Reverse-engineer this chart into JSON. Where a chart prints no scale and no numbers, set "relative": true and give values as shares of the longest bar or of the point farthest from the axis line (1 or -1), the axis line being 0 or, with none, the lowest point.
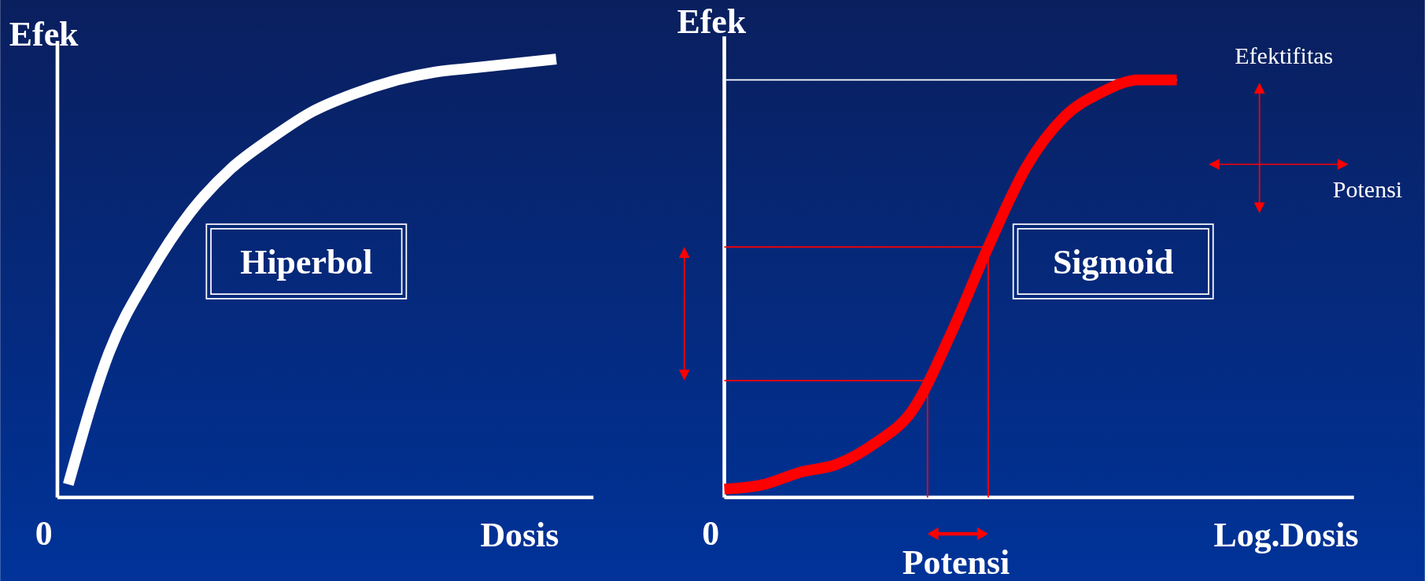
{
  "chart_data": [
    {
      "type": "line",
      "relative": true,
      "xlabel": "Dosis",
      "ylabel": "Efek",
      "categories": [
        null,
        null,
        null,
        null,
        null,
        null,
        null,
        null,
        null,
        null,
        null,
        null,
        null
      ],
      "series": [
        {
          "color": "#ffffff",
          "values": [
            0.03,
            0.33,
            0.51,
            0.65,
            0.75,
            0.82,
            0.88,
            0.92,
            0.95,
            0.97,
            0.98,
            0.99,
            1
          ]
        }
      ],
      "annotations": [
        "Hiperbol",
        "0"
      ],
      "legend": false,
      "grid": false,
      "marker": "none",
      "line_style": "solid"
    },
    {
      "type": "line",
      "relative": true,
      "xlabel": "Log.Dosis",
      "ylabel": "Efek",
      "categories": [
        null,
        null,
        null,
        null,
        null,
        null,
        null,
        null,
        null,
        null,
        null,
        null,
        null
      ],
      "series": [
        {
          "color": "#ff0000",
          "values": [
            0.02,
            0.03,
            0.06,
            0.08,
            0.13,
            0.21,
            0.39,
            0.6,
            0.79,
            0.91,
            0.97,
            1,
            1
          ]
        }
      ],
      "ref_lines": [
        {
          "axis": "y",
          "value": 1,
          "color": "#ffffff"
        },
        {
          "axis": "y",
          "value": 0.6,
          "color": "#ff0000"
        },
        {
          "axis": "y",
          "value": 0.28,
          "color": "#ff0000"
        }
      ],
      "annotations": [
        "Sigmoid",
        "Efektifitas",
        "Potensi",
        "Potensi",
        "0"
      ],
      "legend": false,
      "grid": false,
      "marker": "none",
      "line_style": "solid"
    }
  ]
}
